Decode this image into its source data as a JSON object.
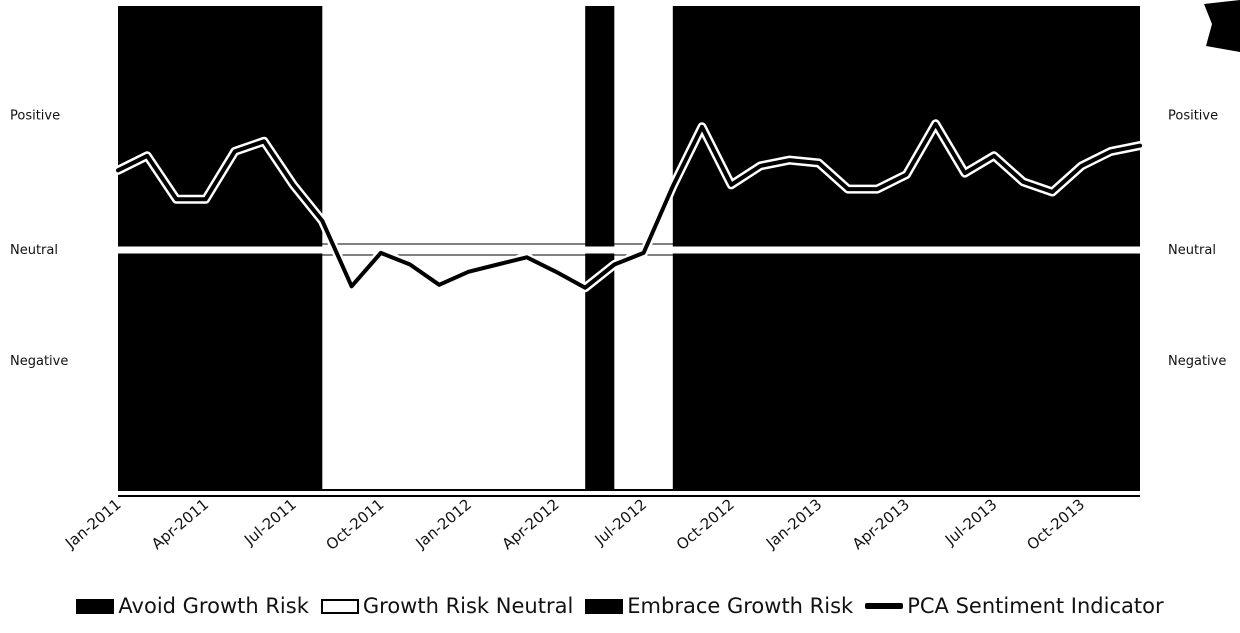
{
  "chart_data": {
    "type": "line",
    "x": [
      "Jan-2011",
      "Feb-2011",
      "Mar-2011",
      "Apr-2011",
      "May-2011",
      "Jun-2011",
      "Jul-2011",
      "Aug-2011",
      "Sep-2011",
      "Oct-2011",
      "Nov-2011",
      "Dec-2011",
      "Jan-2012",
      "Feb-2012",
      "Mar-2012",
      "Apr-2012",
      "May-2012",
      "Jun-2012",
      "Jul-2012",
      "Aug-2012",
      "Sep-2012",
      "Oct-2012",
      "Nov-2012",
      "Dec-2012",
      "Jan-2013",
      "Feb-2013",
      "Mar-2013",
      "Apr-2013",
      "May-2013",
      "Jun-2013",
      "Jul-2013",
      "Aug-2013",
      "Sep-2013",
      "Oct-2013",
      "Nov-2013",
      "Dec-2013"
    ],
    "x_tick_labels": [
      "Jan-2011",
      "Apr-2011",
      "Jul-2011",
      "Oct-2011",
      "Jan-2012",
      "Apr-2012",
      "Jul-2012",
      "Oct-2012",
      "Jan-2013",
      "Apr-2013",
      "Jul-2013",
      "Oct-2013"
    ],
    "y_categories": [
      "Positive",
      "Neutral",
      "Negative"
    ],
    "series": [
      {
        "name": "PCA Sentiment Indicator",
        "values": [
          0.55,
          0.65,
          0.35,
          0.35,
          0.68,
          0.75,
          0.45,
          0.2,
          -0.25,
          -0.02,
          -0.1,
          -0.24,
          -0.15,
          -0.1,
          -0.05,
          -0.15,
          -0.26,
          -0.1,
          -0.02,
          0.44,
          0.85,
          0.45,
          0.58,
          0.62,
          0.6,
          0.42,
          0.42,
          0.52,
          0.87,
          0.53,
          0.65,
          0.47,
          0.4,
          0.58,
          0.68,
          0.72
        ]
      }
    ],
    "regimes": [
      {
        "label": "Avoid Growth Risk",
        "start": "Jan-2011",
        "end": "Aug-2011"
      },
      {
        "label": "Growth Risk Neutral",
        "start": "Aug-2011",
        "end": "May-2012"
      },
      {
        "label": "Embrace Growth Risk",
        "start": "May-2012",
        "end": "Jun-2012"
      },
      {
        "label": "Growth Risk Neutral",
        "start": "Jun-2012",
        "end": "Aug-2012"
      },
      {
        "label": "Avoid Growth Risk",
        "start": "Aug-2012",
        "end": "Dec-2013"
      }
    ],
    "ylim": [
      -2,
      2
    ],
    "grid": false,
    "legend_position": "bottom",
    "title": "",
    "xlabel": "",
    "ylabel": ""
  },
  "legend": {
    "avoid": "Avoid Growth Risk",
    "neutral": "Growth Risk Neutral",
    "embrace": "Embrace Growth Risk",
    "indicator": "PCA Sentiment Indicator"
  },
  "colors": {
    "avoid_fill": "#000000",
    "neutral_fill": "#ffffff",
    "embrace_fill": "#000000",
    "line": "#000000",
    "axis": "#000000"
  }
}
